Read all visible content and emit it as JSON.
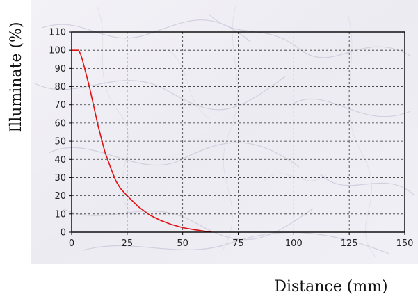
{
  "chart_data": {
    "type": "line",
    "xlabel": "Distance (mm)",
    "ylabel": "Illuminate (%)",
    "xlim": [
      0,
      150
    ],
    "ylim": [
      0,
      110
    ],
    "x_ticks": [
      0,
      25,
      50,
      75,
      100,
      125,
      150
    ],
    "y_ticks": [
      0,
      10,
      20,
      30,
      40,
      50,
      60,
      70,
      80,
      90,
      100,
      110
    ],
    "grid": true,
    "grid_style": "dashed",
    "background": "marbled",
    "series": [
      {
        "color": "#e01010",
        "x": [
          0,
          3,
          4,
          5,
          8,
          10,
          12,
          15,
          18,
          20,
          22,
          25,
          30,
          35,
          40,
          45,
          50,
          55,
          60,
          63
        ],
        "y": [
          100,
          100,
          98,
          94,
          80,
          69,
          58,
          44,
          34,
          28,
          24,
          20,
          14,
          9.5,
          6.5,
          4.2,
          2.5,
          1.4,
          0.5,
          0
        ]
      }
    ]
  }
}
